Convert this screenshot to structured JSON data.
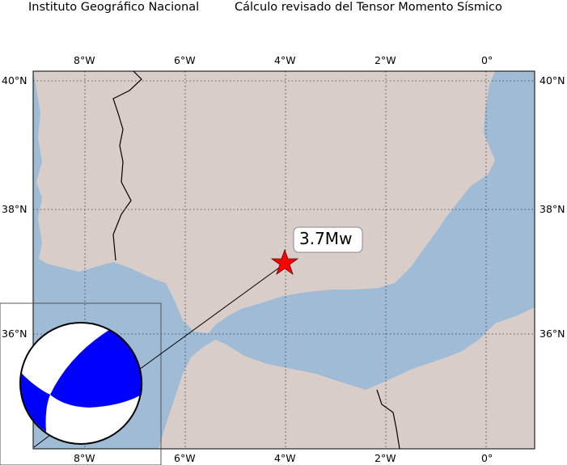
{
  "title_left": "Instituto Geográfico Nacional",
  "title_right": "Cálculo revisado del Tensor Momento Sísmico",
  "lon_ticks": [
    "8°W",
    "6°W",
    "4°W",
    "2°W",
    "0°"
  ],
  "lat_ticks": [
    "40°N",
    "38°N",
    "36°N"
  ],
  "event": {
    "magnitude_label": "3.7Mw",
    "star_color": "#ff0000"
  },
  "focal_mechanism": {
    "compressional_color": "#0000ff",
    "dilatational_color": "#ffffff"
  },
  "colors": {
    "sea": "#9fbbd6",
    "land": "#d9cdca",
    "grid": "#333333"
  }
}
